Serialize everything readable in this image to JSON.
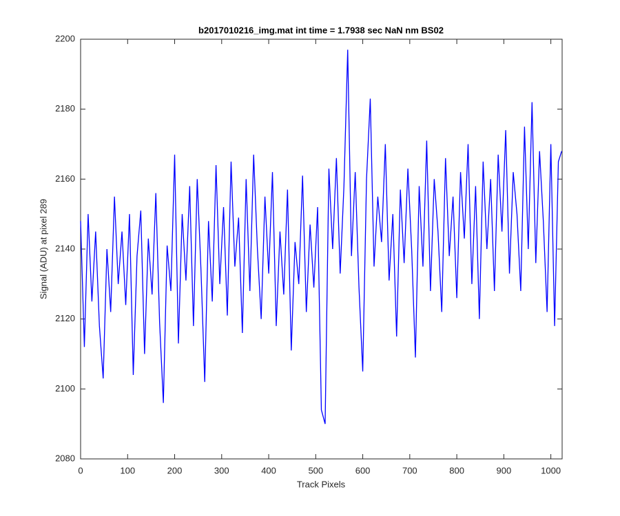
{
  "chart_data": {
    "type": "line",
    "title": "b2017010216_img.mat int time = 1.7938 sec  NaN nm BS02",
    "x_label": "Track Pixels",
    "y_label": "Signal (ADU) at pixel 289",
    "xlim": [
      0,
      1024
    ],
    "ylim": [
      2080,
      2200
    ],
    "xticks": [
      0,
      100,
      200,
      300,
      400,
      500,
      600,
      700,
      800,
      900,
      1000
    ],
    "yticks": [
      2080,
      2100,
      2120,
      2140,
      2160,
      2180,
      2200
    ],
    "grid": false,
    "x": [
      0,
      8,
      16,
      24,
      32,
      40,
      48,
      56,
      64,
      72,
      80,
      88,
      96,
      104,
      112,
      120,
      128,
      136,
      144,
      152,
      160,
      168,
      176,
      184,
      192,
      200,
      208,
      216,
      224,
      232,
      240,
      248,
      256,
      264,
      272,
      280,
      288,
      296,
      304,
      312,
      320,
      328,
      336,
      344,
      352,
      360,
      368,
      376,
      384,
      392,
      400,
      408,
      416,
      424,
      432,
      440,
      448,
      456,
      464,
      472,
      480,
      488,
      496,
      504,
      512,
      520,
      528,
      536,
      544,
      552,
      560,
      568,
      576,
      584,
      592,
      600,
      608,
      616,
      624,
      632,
      640,
      648,
      656,
      664,
      672,
      680,
      688,
      696,
      704,
      712,
      720,
      728,
      736,
      744,
      752,
      760,
      768,
      776,
      784,
      792,
      800,
      808,
      816,
      824,
      832,
      840,
      848,
      856,
      864,
      872,
      880,
      888,
      896,
      904,
      912,
      920,
      928,
      936,
      944,
      952,
      960,
      968,
      976,
      984,
      992,
      1000,
      1008,
      1016,
      1023
    ],
    "series": [
      {
        "name": "Signal",
        "color": "#0000ff",
        "values": [
          2148,
          2112,
          2150,
          2125,
          2145,
          2118,
          2103,
          2140,
          2122,
          2155,
          2130,
          2145,
          2124,
          2150,
          2104,
          2138,
          2151,
          2110,
          2143,
          2127,
          2156,
          2119,
          2096,
          2141,
          2128,
          2167,
          2113,
          2150,
          2131,
          2158,
          2118,
          2160,
          2134,
          2102,
          2148,
          2125,
          2164,
          2130,
          2152,
          2121,
          2165,
          2135,
          2149,
          2116,
          2160,
          2128,
          2167,
          2140,
          2120,
          2155,
          2133,
          2162,
          2118,
          2145,
          2127,
          2157,
          2111,
          2142,
          2130,
          2161,
          2122,
          2147,
          2129,
          2152,
          2094,
          2090,
          2163,
          2140,
          2166,
          2133,
          2158,
          2197,
          2138,
          2162,
          2129,
          2105,
          2160,
          2183,
          2135,
          2155,
          2142,
          2170,
          2131,
          2150,
          2115,
          2157,
          2136,
          2163,
          2140,
          2109,
          2158,
          2135,
          2171,
          2128,
          2160,
          2145,
          2122,
          2166,
          2138,
          2155,
          2126,
          2162,
          2143,
          2170,
          2130,
          2158,
          2120,
          2165,
          2140,
          2160,
          2128,
          2167,
          2145,
          2174,
          2133,
          2162,
          2150,
          2128,
          2175,
          2140,
          2182,
          2136,
          2168,
          2148,
          2122,
          2170,
          2118,
          2165,
          2168
        ]
      }
    ]
  }
}
